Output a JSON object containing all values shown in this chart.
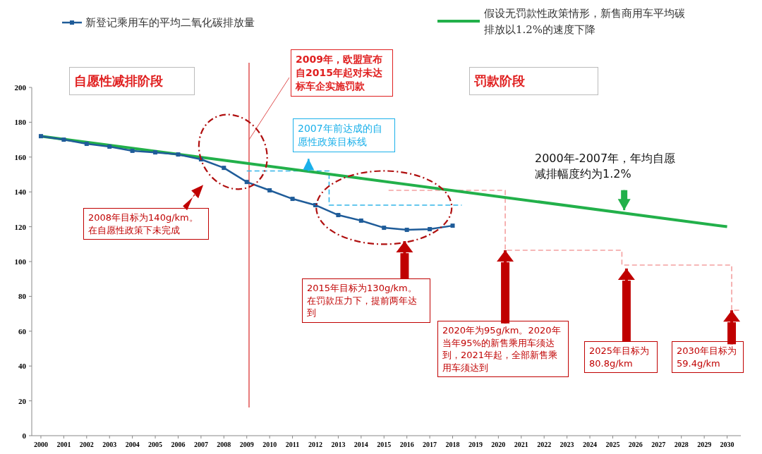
{
  "chart_data": {
    "type": "line",
    "x": [
      2000,
      2001,
      2002,
      2003,
      2004,
      2005,
      2006,
      2007,
      2008,
      2009,
      2010,
      2011,
      2012,
      2013,
      2014,
      2015,
      2016,
      2017,
      2018
    ],
    "xlim": [
      1999.6,
      2030.6
    ],
    "xticks": [
      2000,
      2001,
      2002,
      2003,
      2004,
      2005,
      2006,
      2007,
      2008,
      2009,
      2010,
      2011,
      2012,
      2013,
      2014,
      2015,
      2016,
      2017,
      2018,
      2019,
      2020,
      2021,
      2022,
      2023,
      2024,
      2025,
      2026,
      2027,
      2028,
      2029,
      2030
    ],
    "ylim": [
      0,
      200
    ],
    "yticks": [
      0,
      20,
      40,
      60,
      80,
      100,
      120,
      140,
      160,
      180,
      200
    ],
    "grid": false,
    "legend": "top",
    "marker": "square",
    "series": [
      {
        "name": "新登记乘用车的平均二氧化碳排放量",
        "color": "#1f5c99",
        "values": [
          172,
          170,
          167.6,
          166,
          163.6,
          162.7,
          161.5,
          158.7,
          153.8,
          145.7,
          140.9,
          136,
          132.4,
          126.7,
          123.5,
          119.4,
          118.2,
          118.6,
          120.6
        ]
      },
      {
        "name": "假设无罚款性政策情形，新售商用车平均碳排放以1.2%的速度下降",
        "color": "#22b04a",
        "x": [
          2000,
          2030
        ],
        "values": [
          172,
          120
        ],
        "marker": "none"
      },
      {
        "color": "#33b5e8",
        "x": [
          2009,
          2012.6,
          2012.6,
          2018.4
        ],
        "values": [
          152,
          152,
          132.4,
          132.4
        ],
        "marker": "none",
        "line_style": "dashed"
      },
      {
        "color": "#f4a0a0",
        "x": [
          2015.2,
          2020.3,
          2020.3,
          2025.4,
          2025.4,
          2030.2,
          2030.2,
          2030.6
        ],
        "values": [
          140.9,
          140.9,
          106.5,
          106.5,
          98,
          98,
          72,
          72
        ],
        "marker": "none",
        "line_style": "dashed"
      }
    ],
    "ref_lines": [
      {
        "axis": "x",
        "value": 2009.1,
        "color": "#e05050"
      }
    ],
    "annotations": [
      "自愿性减排阶段",
      "罚款阶段",
      {
        "text": "2009年，欧盟宣布自2015年起对未达标车企实施罚款",
        "x": 2009.1,
        "y": 170
      },
      "2007年前达成的自愿性政策目标线",
      {
        "text": "2000年-2007年，年均自愿减排幅度约为1.2%",
        "x": 2025.5,
        "y": 129.5
      },
      "2008年目标为140g/km。在自愿性政策下未完成",
      "2015年目标为130g/km。在罚款压力下，提前两年达到",
      {
        "text": "2020年为95g/km。2020年当年95%的新售乘用车须达到，2021年起，全部新售乘用车须达到",
        "x": 2020.3,
        "y": 106.5
      },
      "2025年目标为80.8g/km",
      {
        "text": "2030年目标为59.4g/km",
        "x": 2030.2,
        "y": 72
      }
    ]
  }
}
